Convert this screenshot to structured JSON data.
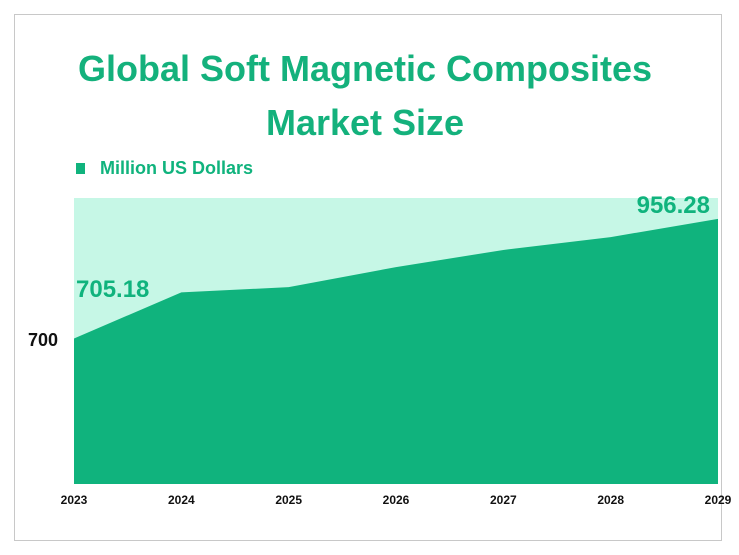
{
  "chart_data": {
    "type": "area",
    "title": "Global Soft Magnetic Composites Market Size",
    "categories": [
      "2023",
      "2024",
      "2025",
      "2026",
      "2027",
      "2028",
      "2029"
    ],
    "series": [
      {
        "name": "Million US Dollars",
        "color": "#10b37d",
        "values": [
          705.18,
          802,
          813,
          855,
          891,
          918,
          956.28
        ]
      }
    ],
    "background": "#c6f7e6",
    "ylim": [
      400,
      1000
    ],
    "yticks": [
      700
    ]
  }
}
